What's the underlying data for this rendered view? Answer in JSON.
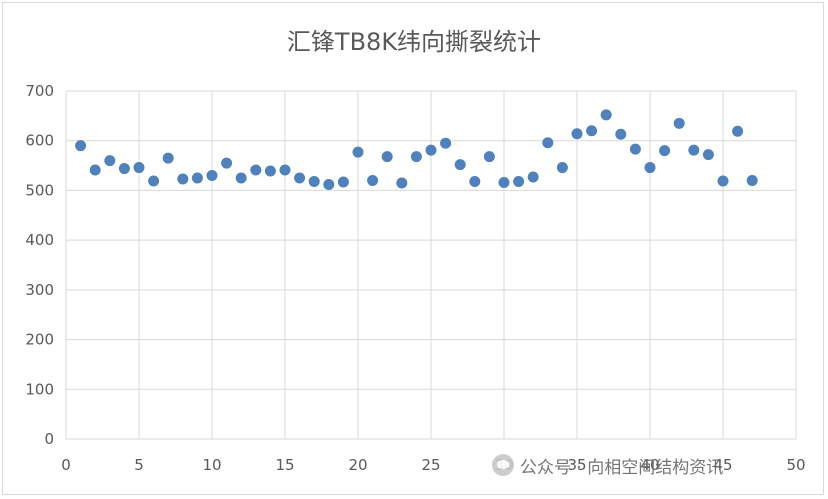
{
  "chart_data": {
    "type": "scatter",
    "title": "汇锋TB8K纬向撕裂统计",
    "xlabel": "",
    "ylabel": "",
    "xlim": [
      0,
      50
    ],
    "ylim": [
      0,
      700
    ],
    "xticks": [
      0,
      5,
      10,
      15,
      20,
      25,
      30,
      35,
      40,
      45,
      50
    ],
    "yticks": [
      0,
      100,
      200,
      300,
      400,
      500,
      600,
      700
    ],
    "grid": true,
    "legend": "none",
    "marker_color": "#4f81bd",
    "series": [
      {
        "x": [
          1,
          2,
          3,
          4,
          5,
          6,
          7,
          8,
          9,
          10,
          11,
          12,
          13,
          14,
          15,
          16,
          17,
          18,
          19,
          20,
          21,
          22,
          23,
          24,
          25,
          26,
          27,
          28,
          29,
          30,
          31,
          32,
          33,
          34,
          35,
          36,
          37,
          38,
          39,
          40,
          41,
          42,
          43,
          44,
          45,
          46,
          47
        ],
        "values": [
          590,
          541,
          560,
          544,
          546,
          519,
          565,
          523,
          525,
          530,
          555,
          525,
          541,
          539,
          541,
          525,
          518,
          512,
          517,
          577,
          520,
          568,
          515,
          568,
          581,
          595,
          552,
          518,
          568,
          516,
          518,
          527,
          596,
          546,
          614,
          620,
          652,
          613,
          583,
          546,
          580,
          635,
          581,
          572,
          519,
          619,
          520
        ]
      }
    ]
  },
  "watermark": {
    "text": "公众号 · 向相空间结构资讯",
    "icon": "wechat-icon"
  }
}
